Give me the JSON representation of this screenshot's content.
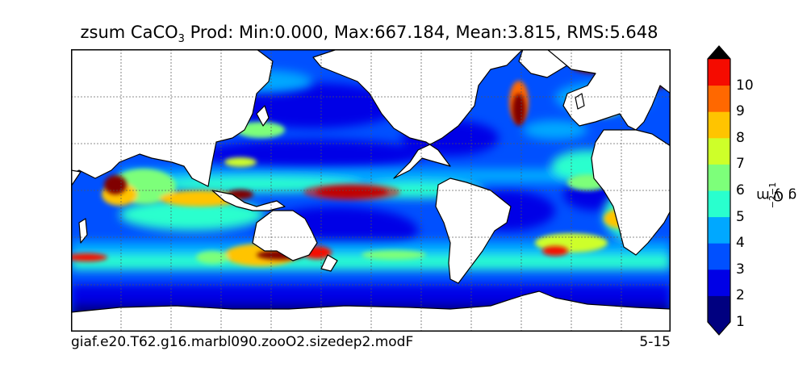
{
  "title": {
    "field": "zsum",
    "species_prefix": "CaCO",
    "species_sub": "3",
    "rest": " Prod: Min:0.000, Max:667.184, Mean:3.815, RMS:5.648"
  },
  "caption": {
    "case_name": "giaf.e20.T62.g16.marbl090.zooO2.sizedep2.modF",
    "period": "5-15"
  },
  "colorbar": {
    "label_prefix": "g C m",
    "label_exp1": "−2",
    "label_mid": " y",
    "label_exp2": "−1",
    "ticks": [
      "1",
      "2",
      "3",
      "4",
      "5",
      "6",
      "7",
      "8",
      "9",
      "10"
    ],
    "levels": [
      {
        "lo": 0.0,
        "hi": 1.0,
        "color": "#000080"
      },
      {
        "lo": 1.0,
        "hi": 2.0,
        "color": "#0000e6"
      },
      {
        "lo": 2.0,
        "hi": 3.0,
        "color": "#0050ff"
      },
      {
        "lo": 3.0,
        "hi": 4.0,
        "color": "#00a8ff"
      },
      {
        "lo": 4.0,
        "hi": 5.0,
        "color": "#29ffce"
      },
      {
        "lo": 5.0,
        "hi": 6.0,
        "color": "#7dff7a"
      },
      {
        "lo": 6.0,
        "hi": 7.0,
        "color": "#ceff29"
      },
      {
        "lo": 7.0,
        "hi": 8.0,
        "color": "#ffc400"
      },
      {
        "lo": 8.0,
        "hi": 9.0,
        "color": "#ff6800"
      },
      {
        "lo": 9.0,
        "hi": 10.0,
        "color": "#f50b00"
      },
      {
        "lo": 10.0,
        "hi": 667.184,
        "color": "#800000"
      }
    ],
    "extend": "both"
  },
  "map": {
    "projection": "global longitude-latitude grid",
    "gridlines": true,
    "land_color": "#ffffff",
    "coastline_color": "#000000"
  }
}
